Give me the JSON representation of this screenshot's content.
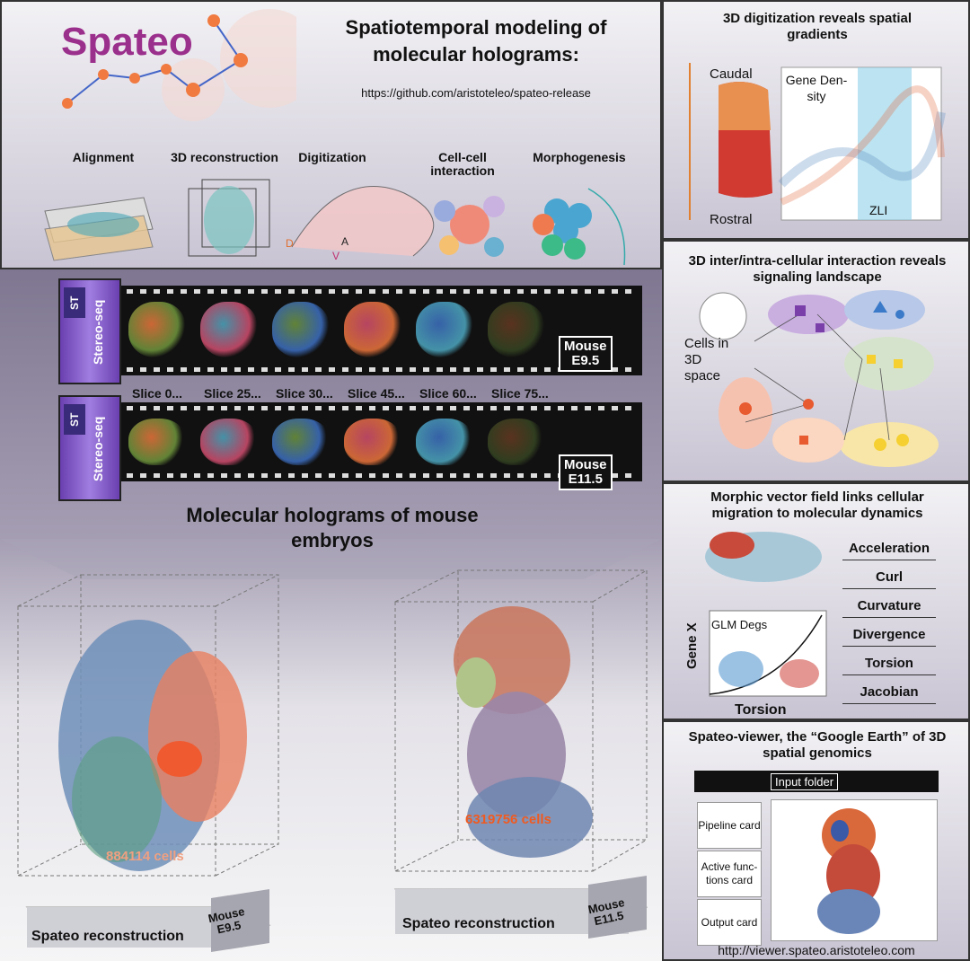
{
  "logo": "Spateo",
  "header": {
    "title": "Spatiotemporal modeling of molecular holograms:",
    "url": "https://github.com/aristoteleo/spateo-release"
  },
  "steps": [
    "Alignment",
    "3D reconstruction",
    "Digitization",
    "Cell-cell interaction",
    "Morphogenesis"
  ],
  "digitization_axis_labels": [
    "D",
    "V",
    "A"
  ],
  "film": [
    {
      "badge": "ST",
      "label": "Stereo-seq",
      "stage": [
        "Mouse",
        "E9.5"
      ]
    },
    {
      "badge": "ST",
      "label": "Stereo-seq",
      "stage": [
        "Mouse",
        "E11.5"
      ]
    }
  ],
  "slices": [
    "Slice 0...",
    "Slice 25...",
    "Slice 30...",
    "Slice 45...",
    "Slice 60...",
    "Slice 75..."
  ],
  "holograms": {
    "title": "Molecular holograms of mouse embryos",
    "items": [
      {
        "cells": "884114 cells",
        "caption": "Spateo reconstruction",
        "stage": [
          "Mouse",
          "E9.5"
        ]
      },
      {
        "cells": "6319756 cells",
        "caption": "Spateo reconstruction",
        "stage": [
          "Mouse",
          "E11.5"
        ]
      }
    ]
  },
  "panels": {
    "digitization": {
      "title": "3D digitization reveals spatial gradients",
      "caudal": "Caudal",
      "rostral": "Rostral",
      "gene_density": "Gene Den-sity",
      "zli": "ZLI"
    },
    "interaction": {
      "title": "3D inter/intra-cellular interaction reveals signaling landscape",
      "cells_label": "Cells in 3D space"
    },
    "vector_field": {
      "title": "Morphic vector field links cellular migration to molecular dynamics",
      "plot_label": "GLM Degs",
      "y_label": "Gene X",
      "x_label": "Torsion",
      "metrics": [
        "Acceleration",
        "Curl",
        "Curvature",
        "Divergence",
        "Torsion",
        "Jacobian"
      ]
    },
    "viewer": {
      "title": "Spateo-viewer, the “Google Earth” of 3D spatial genomics",
      "input": "Input folder",
      "cards": [
        "Pipeline card",
        "Active func-tions card",
        "Output card"
      ],
      "url": "http://viewer.spateo.aristoteleo.com"
    }
  }
}
